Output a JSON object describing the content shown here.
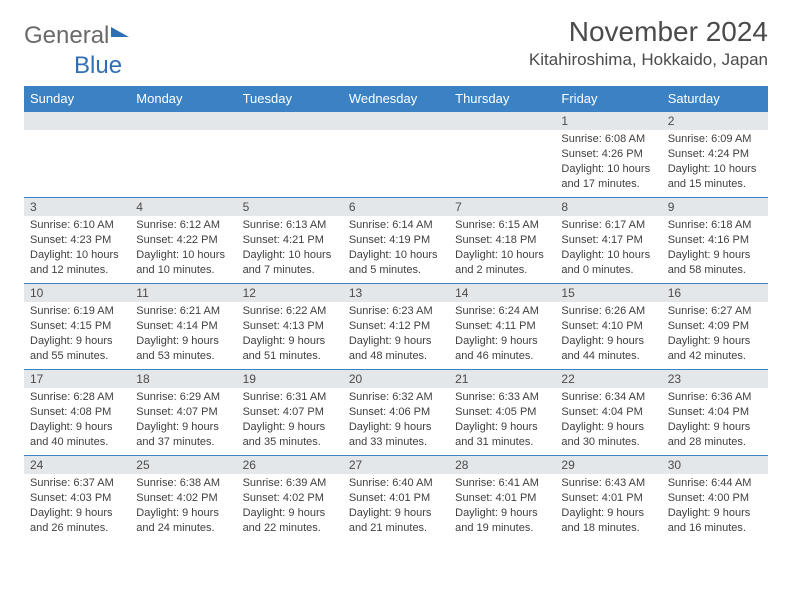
{
  "logo": {
    "general": "General",
    "blue": "Blue"
  },
  "title": "November 2024",
  "location": "Kitahiroshima, Hokkaido, Japan",
  "weekdays": [
    "Sunday",
    "Monday",
    "Tuesday",
    "Wednesday",
    "Thursday",
    "Friday",
    "Saturday"
  ],
  "colors": {
    "header_bg": "#3a82c4",
    "header_text": "#ffffff",
    "daynum_bg": "#e4e7ea",
    "border": "#3a82c4",
    "text": "#3f3f3f",
    "title_text": "#4b4b4b",
    "logo_gray": "#6a6a6a",
    "logo_blue": "#2f6fb3"
  },
  "grid": [
    [
      {
        "day": "",
        "sunrise": "",
        "sunset": "",
        "daylight": ""
      },
      {
        "day": "",
        "sunrise": "",
        "sunset": "",
        "daylight": ""
      },
      {
        "day": "",
        "sunrise": "",
        "sunset": "",
        "daylight": ""
      },
      {
        "day": "",
        "sunrise": "",
        "sunset": "",
        "daylight": ""
      },
      {
        "day": "",
        "sunrise": "",
        "sunset": "",
        "daylight": ""
      },
      {
        "day": "1",
        "sunrise": "Sunrise: 6:08 AM",
        "sunset": "Sunset: 4:26 PM",
        "daylight": "Daylight: 10 hours and 17 minutes."
      },
      {
        "day": "2",
        "sunrise": "Sunrise: 6:09 AM",
        "sunset": "Sunset: 4:24 PM",
        "daylight": "Daylight: 10 hours and 15 minutes."
      }
    ],
    [
      {
        "day": "3",
        "sunrise": "Sunrise: 6:10 AM",
        "sunset": "Sunset: 4:23 PM",
        "daylight": "Daylight: 10 hours and 12 minutes."
      },
      {
        "day": "4",
        "sunrise": "Sunrise: 6:12 AM",
        "sunset": "Sunset: 4:22 PM",
        "daylight": "Daylight: 10 hours and 10 minutes."
      },
      {
        "day": "5",
        "sunrise": "Sunrise: 6:13 AM",
        "sunset": "Sunset: 4:21 PM",
        "daylight": "Daylight: 10 hours and 7 minutes."
      },
      {
        "day": "6",
        "sunrise": "Sunrise: 6:14 AM",
        "sunset": "Sunset: 4:19 PM",
        "daylight": "Daylight: 10 hours and 5 minutes."
      },
      {
        "day": "7",
        "sunrise": "Sunrise: 6:15 AM",
        "sunset": "Sunset: 4:18 PM",
        "daylight": "Daylight: 10 hours and 2 minutes."
      },
      {
        "day": "8",
        "sunrise": "Sunrise: 6:17 AM",
        "sunset": "Sunset: 4:17 PM",
        "daylight": "Daylight: 10 hours and 0 minutes."
      },
      {
        "day": "9",
        "sunrise": "Sunrise: 6:18 AM",
        "sunset": "Sunset: 4:16 PM",
        "daylight": "Daylight: 9 hours and 58 minutes."
      }
    ],
    [
      {
        "day": "10",
        "sunrise": "Sunrise: 6:19 AM",
        "sunset": "Sunset: 4:15 PM",
        "daylight": "Daylight: 9 hours and 55 minutes."
      },
      {
        "day": "11",
        "sunrise": "Sunrise: 6:21 AM",
        "sunset": "Sunset: 4:14 PM",
        "daylight": "Daylight: 9 hours and 53 minutes."
      },
      {
        "day": "12",
        "sunrise": "Sunrise: 6:22 AM",
        "sunset": "Sunset: 4:13 PM",
        "daylight": "Daylight: 9 hours and 51 minutes."
      },
      {
        "day": "13",
        "sunrise": "Sunrise: 6:23 AM",
        "sunset": "Sunset: 4:12 PM",
        "daylight": "Daylight: 9 hours and 48 minutes."
      },
      {
        "day": "14",
        "sunrise": "Sunrise: 6:24 AM",
        "sunset": "Sunset: 4:11 PM",
        "daylight": "Daylight: 9 hours and 46 minutes."
      },
      {
        "day": "15",
        "sunrise": "Sunrise: 6:26 AM",
        "sunset": "Sunset: 4:10 PM",
        "daylight": "Daylight: 9 hours and 44 minutes."
      },
      {
        "day": "16",
        "sunrise": "Sunrise: 6:27 AM",
        "sunset": "Sunset: 4:09 PM",
        "daylight": "Daylight: 9 hours and 42 minutes."
      }
    ],
    [
      {
        "day": "17",
        "sunrise": "Sunrise: 6:28 AM",
        "sunset": "Sunset: 4:08 PM",
        "daylight": "Daylight: 9 hours and 40 minutes."
      },
      {
        "day": "18",
        "sunrise": "Sunrise: 6:29 AM",
        "sunset": "Sunset: 4:07 PM",
        "daylight": "Daylight: 9 hours and 37 minutes."
      },
      {
        "day": "19",
        "sunrise": "Sunrise: 6:31 AM",
        "sunset": "Sunset: 4:07 PM",
        "daylight": "Daylight: 9 hours and 35 minutes."
      },
      {
        "day": "20",
        "sunrise": "Sunrise: 6:32 AM",
        "sunset": "Sunset: 4:06 PM",
        "daylight": "Daylight: 9 hours and 33 minutes."
      },
      {
        "day": "21",
        "sunrise": "Sunrise: 6:33 AM",
        "sunset": "Sunset: 4:05 PM",
        "daylight": "Daylight: 9 hours and 31 minutes."
      },
      {
        "day": "22",
        "sunrise": "Sunrise: 6:34 AM",
        "sunset": "Sunset: 4:04 PM",
        "daylight": "Daylight: 9 hours and 30 minutes."
      },
      {
        "day": "23",
        "sunrise": "Sunrise: 6:36 AM",
        "sunset": "Sunset: 4:04 PM",
        "daylight": "Daylight: 9 hours and 28 minutes."
      }
    ],
    [
      {
        "day": "24",
        "sunrise": "Sunrise: 6:37 AM",
        "sunset": "Sunset: 4:03 PM",
        "daylight": "Daylight: 9 hours and 26 minutes."
      },
      {
        "day": "25",
        "sunrise": "Sunrise: 6:38 AM",
        "sunset": "Sunset: 4:02 PM",
        "daylight": "Daylight: 9 hours and 24 minutes."
      },
      {
        "day": "26",
        "sunrise": "Sunrise: 6:39 AM",
        "sunset": "Sunset: 4:02 PM",
        "daylight": "Daylight: 9 hours and 22 minutes."
      },
      {
        "day": "27",
        "sunrise": "Sunrise: 6:40 AM",
        "sunset": "Sunset: 4:01 PM",
        "daylight": "Daylight: 9 hours and 21 minutes."
      },
      {
        "day": "28",
        "sunrise": "Sunrise: 6:41 AM",
        "sunset": "Sunset: 4:01 PM",
        "daylight": "Daylight: 9 hours and 19 minutes."
      },
      {
        "day": "29",
        "sunrise": "Sunrise: 6:43 AM",
        "sunset": "Sunset: 4:01 PM",
        "daylight": "Daylight: 9 hours and 18 minutes."
      },
      {
        "day": "30",
        "sunrise": "Sunrise: 6:44 AM",
        "sunset": "Sunset: 4:00 PM",
        "daylight": "Daylight: 9 hours and 16 minutes."
      }
    ]
  ]
}
